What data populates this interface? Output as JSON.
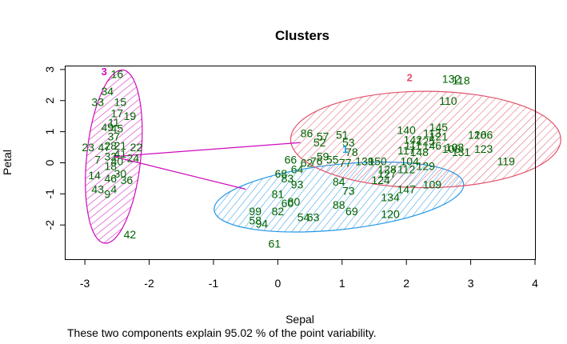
{
  "chart_data": {
    "type": "scatter",
    "title": "Clusters",
    "xlabel": "Sepal",
    "ylabel": "Petal",
    "caption": "These two components explain 95.02 % of the point variability.",
    "xlim": [
      -3.3,
      4.0
    ],
    "ylim": [
      -3.1,
      3.1
    ],
    "x_ticks": [
      -3,
      -2,
      -1,
      0,
      1,
      2,
      3,
      4
    ],
    "y_ticks": [
      -2,
      -1,
      0,
      1,
      2,
      3
    ],
    "grid": false,
    "legend": "none",
    "colors": {
      "cluster_1": "#2297E6",
      "cluster_2": "#DF536B",
      "cluster_3": "#CD0BBC",
      "points": "#006400",
      "lines": "#CD0BBC"
    },
    "clusters": [
      {
        "label": "1",
        "color": "#2297E6",
        "center": [
          1.05,
          0.45
        ],
        "ellipse": {
          "center": [
            0.95,
            -1.1
          ],
          "rx": 1.95,
          "ry": 1.05,
          "angle_deg": -6
        }
      },
      {
        "label": "2",
        "color": "#DF536B",
        "center": [
          2.05,
          2.75
        ],
        "ellipse": {
          "center": [
            2.3,
            0.75
          ],
          "rx": 2.1,
          "ry": 1.55,
          "angle_deg": 0
        }
      },
      {
        "label": "3",
        "color": "#CD0BBC",
        "center": [
          -2.7,
          2.95
        ],
        "ellipse": {
          "center": [
            -2.55,
            0.2
          ],
          "rx": 0.42,
          "ry": 2.8,
          "angle_deg": 6
        }
      }
    ],
    "connections": [
      {
        "from": [
          -2.55,
          0.2
        ],
        "to": [
          0.35,
          0.65
        ]
      },
      {
        "from": [
          -2.55,
          0.2
        ],
        "to": [
          -0.5,
          -0.85
        ]
      }
    ],
    "points": [
      {
        "label": "16",
        "x": -2.5,
        "y": 2.85
      },
      {
        "label": "34",
        "x": -2.65,
        "y": 2.3
      },
      {
        "label": "33",
        "x": -2.8,
        "y": 1.95
      },
      {
        "label": "15",
        "x": -2.45,
        "y": 1.95
      },
      {
        "label": "19",
        "x": -2.3,
        "y": 1.5
      },
      {
        "label": "17",
        "x": -2.5,
        "y": 1.6
      },
      {
        "label": "11",
        "x": -2.55,
        "y": 1.3
      },
      {
        "label": "49",
        "x": -2.65,
        "y": 1.15
      },
      {
        "label": "45",
        "x": -2.5,
        "y": 1.1
      },
      {
        "label": "37",
        "x": -2.55,
        "y": 0.85
      },
      {
        "label": "23",
        "x": -2.95,
        "y": 0.5
      },
      {
        "label": "47",
        "x": -2.7,
        "y": 0.5
      },
      {
        "label": "21",
        "x": -2.45,
        "y": 0.55
      },
      {
        "label": "28",
        "x": -2.6,
        "y": 0.55
      },
      {
        "label": "22",
        "x": -2.2,
        "y": 0.5
      },
      {
        "label": "41",
        "x": -2.45,
        "y": 0.3
      },
      {
        "label": "32",
        "x": -2.6,
        "y": 0.2
      },
      {
        "label": "24",
        "x": -2.25,
        "y": 0.15
      },
      {
        "label": "40",
        "x": -2.5,
        "y": 0.05
      },
      {
        "label": "7",
        "x": -2.8,
        "y": 0.1
      },
      {
        "label": "18",
        "x": -2.6,
        "y": -0.1
      },
      {
        "label": "30",
        "x": -2.45,
        "y": -0.35
      },
      {
        "label": "14",
        "x": -2.85,
        "y": -0.4
      },
      {
        "label": "46",
        "x": -2.6,
        "y": -0.5
      },
      {
        "label": "36",
        "x": -2.35,
        "y": -0.55
      },
      {
        "label": "43",
        "x": -2.8,
        "y": -0.85
      },
      {
        "label": "4",
        "x": -2.55,
        "y": -0.85
      },
      {
        "label": "9",
        "x": -2.65,
        "y": -1.0
      },
      {
        "label": "42",
        "x": -2.3,
        "y": -2.3
      },
      {
        "label": "86",
        "x": 0.45,
        "y": 0.95
      },
      {
        "label": "57",
        "x": 0.7,
        "y": 0.85
      },
      {
        "label": "51",
        "x": 1.0,
        "y": 0.9
      },
      {
        "label": "52",
        "x": 0.65,
        "y": 0.65
      },
      {
        "label": "53",
        "x": 1.1,
        "y": 0.65
      },
      {
        "label": "78",
        "x": 1.15,
        "y": 0.35
      },
      {
        "label": "77",
        "x": 1.05,
        "y": 0.0
      },
      {
        "label": "55",
        "x": 0.85,
        "y": 0.1
      },
      {
        "label": "59",
        "x": 0.7,
        "y": 0.2
      },
      {
        "label": "76",
        "x": 0.6,
        "y": 0.05
      },
      {
        "label": "66",
        "x": 0.2,
        "y": 0.1
      },
      {
        "label": "62",
        "x": 0.45,
        "y": 0.0
      },
      {
        "label": "64",
        "x": 0.3,
        "y": -0.2
      },
      {
        "label": "68",
        "x": 0.05,
        "y": -0.35
      },
      {
        "label": "83",
        "x": 0.15,
        "y": -0.5
      },
      {
        "label": "93",
        "x": 0.3,
        "y": -0.7
      },
      {
        "label": "81",
        "x": 0.0,
        "y": -1.0
      },
      {
        "label": "80",
        "x": 0.25,
        "y": -1.25
      },
      {
        "label": "60",
        "x": 0.15,
        "y": -1.3
      },
      {
        "label": "99",
        "x": -0.35,
        "y": -1.55
      },
      {
        "label": "82",
        "x": 0.0,
        "y": -1.55
      },
      {
        "label": "58",
        "x": -0.35,
        "y": -1.85
      },
      {
        "label": "94",
        "x": -0.25,
        "y": -1.95
      },
      {
        "label": "54",
        "x": 0.4,
        "y": -1.75
      },
      {
        "label": "63",
        "x": 0.55,
        "y": -1.75
      },
      {
        "label": "88",
        "x": 0.95,
        "y": -1.35
      },
      {
        "label": "69",
        "x": 1.15,
        "y": -1.55
      },
      {
        "label": "84",
        "x": 0.95,
        "y": -0.6
      },
      {
        "label": "73",
        "x": 1.1,
        "y": -0.9
      },
      {
        "label": "61",
        "x": -0.05,
        "y": -2.6
      },
      {
        "label": "120",
        "x": 1.75,
        "y": -1.65
      },
      {
        "label": "134",
        "x": 1.75,
        "y": -1.1
      },
      {
        "label": "147",
        "x": 2.0,
        "y": -0.85
      },
      {
        "label": "109",
        "x": 2.4,
        "y": -0.7
      },
      {
        "label": "124",
        "x": 1.6,
        "y": -0.55
      },
      {
        "label": "127",
        "x": 1.7,
        "y": -0.35
      },
      {
        "label": "139",
        "x": 1.35,
        "y": 0.05
      },
      {
        "label": "150",
        "x": 1.55,
        "y": 0.05
      },
      {
        "label": "128",
        "x": 1.7,
        "y": -0.2
      },
      {
        "label": "112",
        "x": 2.0,
        "y": -0.2
      },
      {
        "label": "129",
        "x": 2.3,
        "y": -0.1
      },
      {
        "label": "104",
        "x": 2.05,
        "y": 0.05
      },
      {
        "label": "117",
        "x": 2.0,
        "y": 0.4
      },
      {
        "label": "148",
        "x": 2.2,
        "y": 0.35
      },
      {
        "label": "111",
        "x": 2.1,
        "y": 0.55
      },
      {
        "label": "140",
        "x": 2.0,
        "y": 1.05
      },
      {
        "label": "142",
        "x": 2.1,
        "y": 0.75
      },
      {
        "label": "125",
        "x": 2.3,
        "y": 0.7
      },
      {
        "label": "146",
        "x": 2.4,
        "y": 0.55
      },
      {
        "label": "103",
        "x": 2.75,
        "y": 0.5
      },
      {
        "label": "113",
        "x": 2.4,
        "y": 0.95
      },
      {
        "label": "121",
        "x": 2.5,
        "y": 0.85
      },
      {
        "label": "145",
        "x": 2.5,
        "y": 1.15
      },
      {
        "label": "131",
        "x": 2.85,
        "y": 0.35
      },
      {
        "label": "108",
        "x": 2.7,
        "y": 0.45
      },
      {
        "label": "126",
        "x": 3.1,
        "y": 0.9
      },
      {
        "label": "106",
        "x": 3.2,
        "y": 0.9
      },
      {
        "label": "123",
        "x": 3.2,
        "y": 0.45
      },
      {
        "label": "119",
        "x": 3.55,
        "y": 0.05
      },
      {
        "label": "110",
        "x": 2.65,
        "y": 2.0
      },
      {
        "label": "132",
        "x": 2.7,
        "y": 2.7
      },
      {
        "label": "118",
        "x": 2.85,
        "y": 2.65
      }
    ]
  }
}
